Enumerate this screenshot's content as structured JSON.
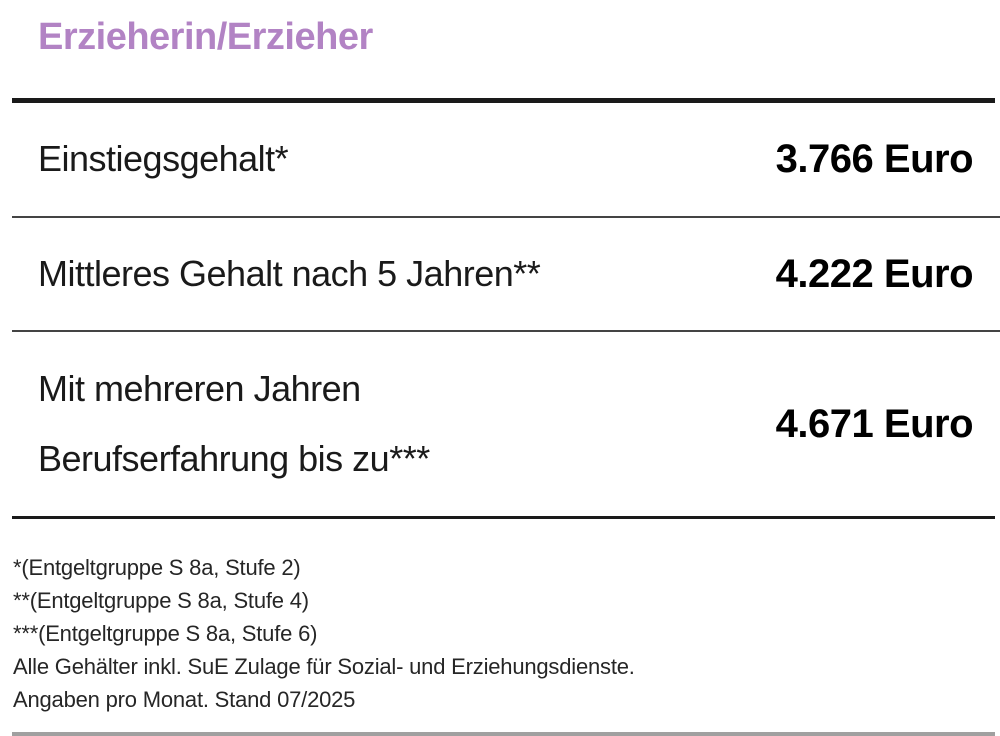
{
  "title": "Erzieherin/Erzieher",
  "table": {
    "rows": [
      {
        "label": "Einstiegsgehalt*",
        "value": "3.766 Euro"
      },
      {
        "label": "Mittleres Gehalt nach 5 Jahren**",
        "value": "4.222 Euro"
      },
      {
        "label": "Mit mehreren Jahren\nBerufserfahrung bis zu***",
        "value": "4.671 Euro"
      }
    ]
  },
  "footnotes": [
    "*(Entgeltgruppe S 8a, Stufe 2)",
    "**(Entgeltgruppe S 8a, Stufe 4)",
    "***(Entgeltgruppe S 8a, Stufe 6)",
    "Alle Gehälter inkl. SuE Zulage für Sozial- und Erziehungsdienste.",
    "Angaben pro Monat. Stand 07/2025"
  ],
  "colors": {
    "background": "#ffffff",
    "title": "#b283c4",
    "text": "#1a1a1a",
    "value": "#000000",
    "footnote": "#262626",
    "rule_dark": "#1a1a1a",
    "rule_light": "#444444",
    "rule_bottom": "#a0a0a0"
  }
}
